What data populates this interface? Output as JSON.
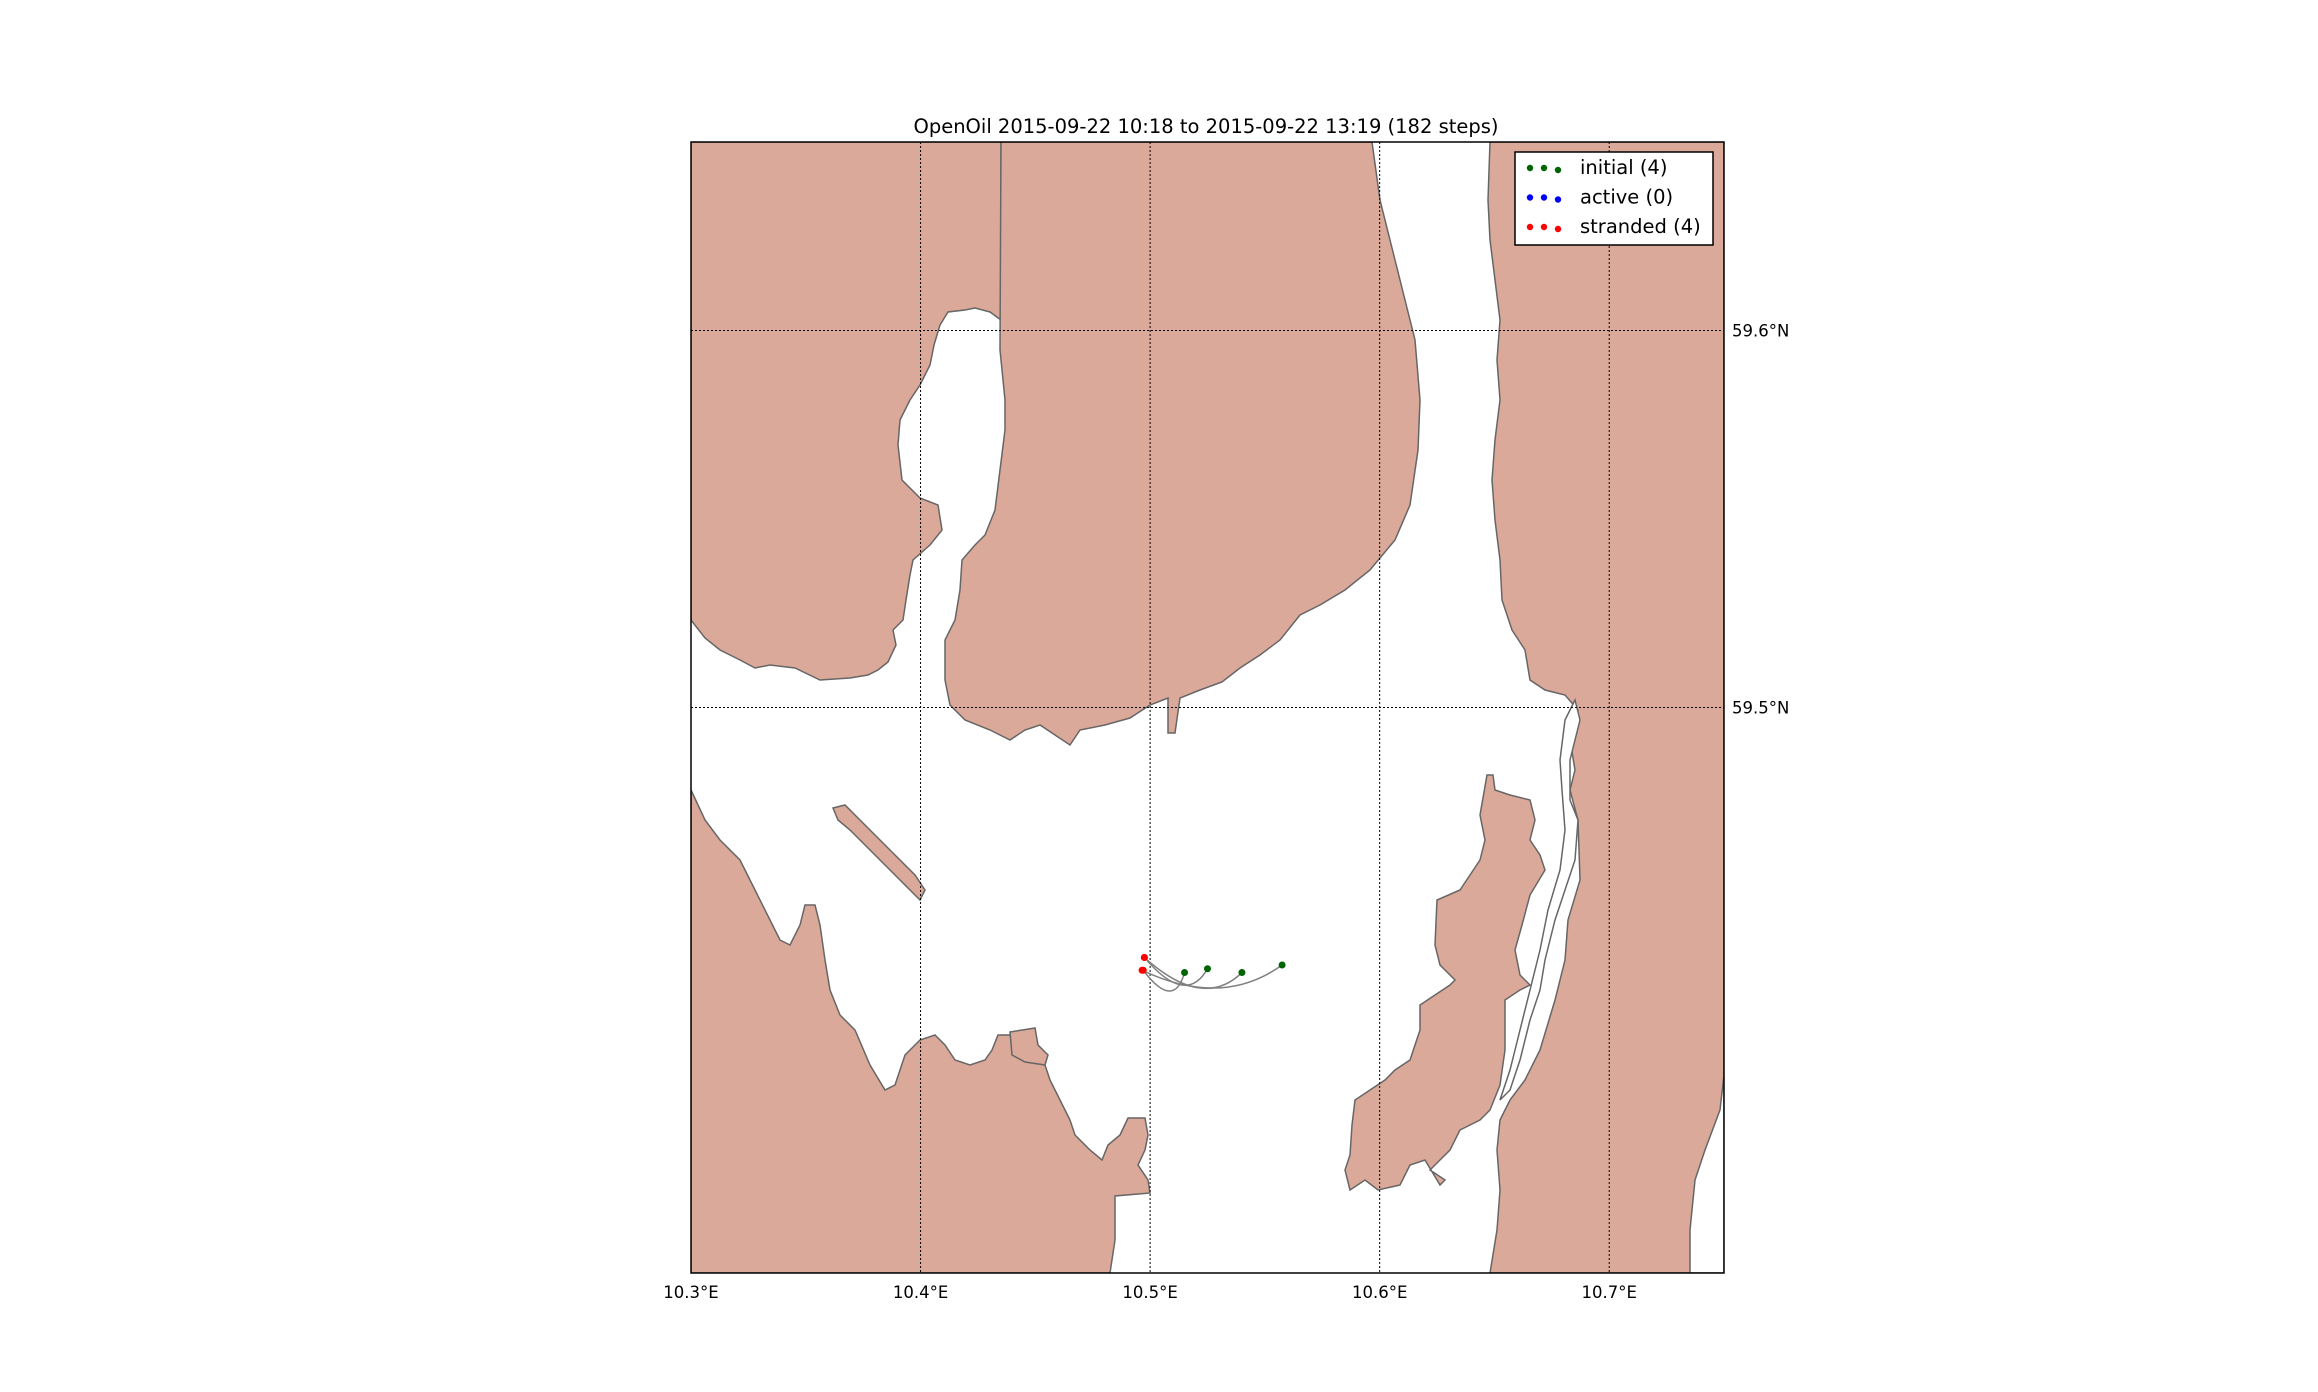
{
  "title": "OpenOil  2015-09-22 10:18 to 2015-09-22 13:19 (182 steps)",
  "map": {
    "lon_range": [
      10.3,
      10.75
    ],
    "lat_range": [
      59.35,
      59.65
    ],
    "land_color": "#dba999",
    "coast_color": "#666666",
    "sea_color": "#ffffff",
    "grid": true
  },
  "lon_ticks": [
    {
      "value": 10.3,
      "label": "10.3°E"
    },
    {
      "value": 10.4,
      "label": "10.4°E"
    },
    {
      "value": 10.5,
      "label": "10.5°E"
    },
    {
      "value": 10.6,
      "label": "10.6°E"
    },
    {
      "value": 10.7,
      "label": "10.7°E"
    }
  ],
  "lat_ticks": [
    {
      "value": 59.6,
      "label": "59.6°N"
    },
    {
      "value": 59.5,
      "label": "59.5°N"
    }
  ],
  "legend": {
    "placement": "top-right",
    "items": [
      {
        "label": "initial (4)",
        "color": "#006400"
      },
      {
        "label": "active (0)",
        "color": "#0000ff"
      },
      {
        "label": "stranded (4)",
        "color": "#ff0000"
      }
    ]
  },
  "particles": [
    {
      "start": [
        10.515,
        59.4297
      ],
      "end": [
        10.497,
        59.4303
      ]
    },
    {
      "start": [
        10.525,
        59.4307
      ],
      "end": [
        10.4975,
        59.4337
      ]
    },
    {
      "start": [
        10.54,
        59.4297
      ],
      "end": [
        10.4975,
        59.4337
      ]
    },
    {
      "start": [
        10.5575,
        59.4317
      ],
      "end": [
        10.4965,
        59.4303
      ]
    }
  ]
}
